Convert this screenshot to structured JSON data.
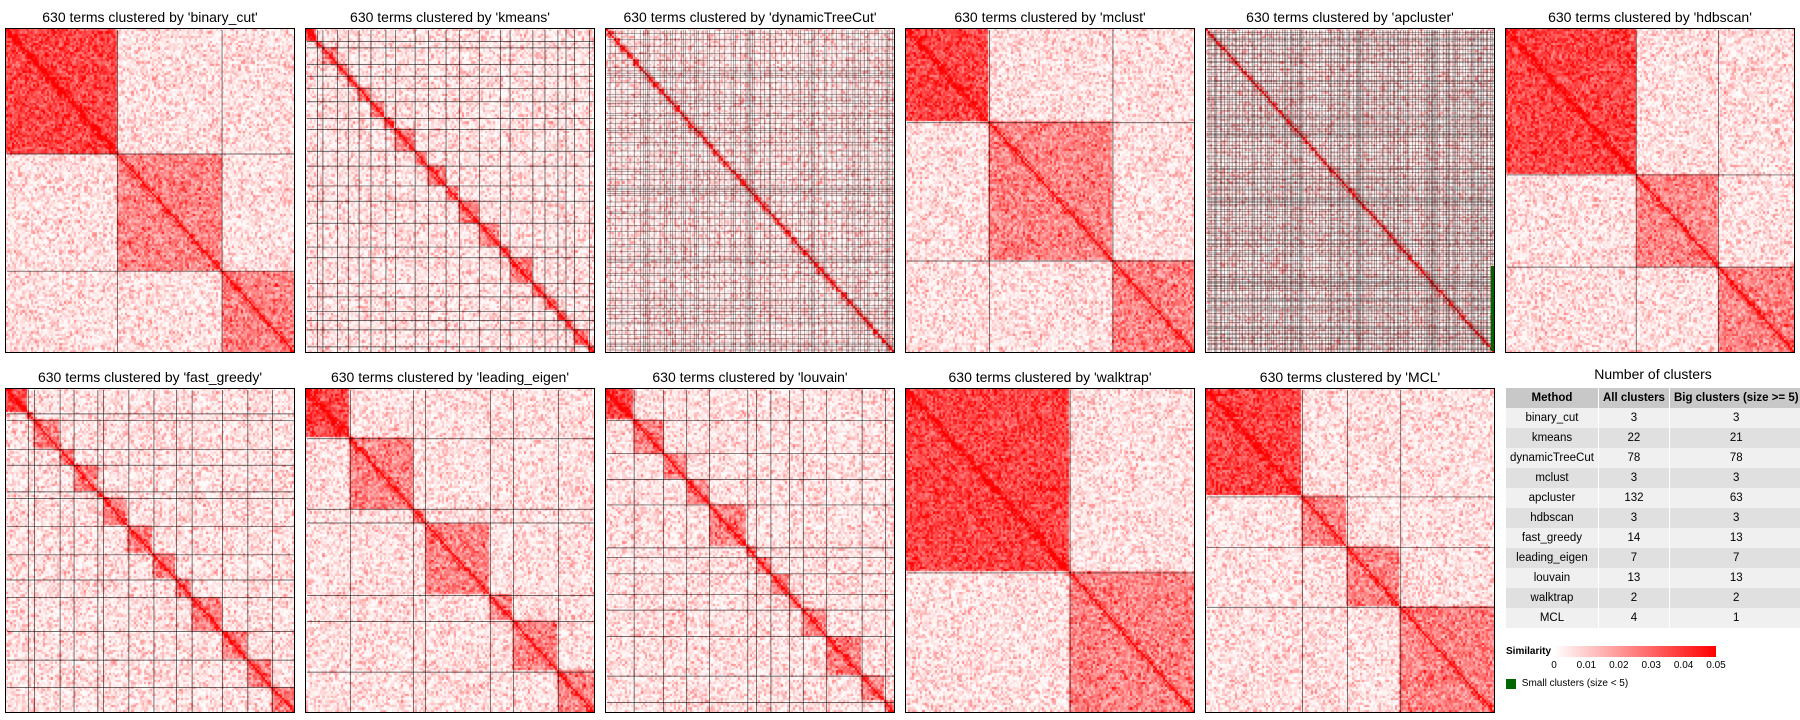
{
  "colors": {
    "low": "#ffffff",
    "high": "#ff0000",
    "boundary": "#000000",
    "small_cluster": "#006400"
  },
  "panels": [
    {
      "title": "630 terms clustered by 'binary_cut'",
      "method": "binary_cut",
      "clusters": 3
    },
    {
      "title": "630 terms clustered by 'kmeans'",
      "method": "kmeans",
      "clusters": 22
    },
    {
      "title": "630 terms clustered by 'dynamicTreeCut'",
      "method": "dynamicTreeCut",
      "clusters": 78
    },
    {
      "title": "630 terms clustered by 'mclust'",
      "method": "mclust",
      "clusters": 3
    },
    {
      "title": "630 terms clustered by 'apcluster'",
      "method": "apcluster",
      "clusters": 132
    },
    {
      "title": "630 terms clustered by 'hdbscan'",
      "method": "hdbscan",
      "clusters": 3
    },
    {
      "title": "630 terms clustered by 'fast_greedy'",
      "method": "fast_greedy",
      "clusters": 14
    },
    {
      "title": "630 terms clustered by 'leading_eigen'",
      "method": "leading_eigen",
      "clusters": 7
    },
    {
      "title": "630 terms clustered by 'louvain'",
      "method": "louvain",
      "clusters": 13
    },
    {
      "title": "630 terms clustered by 'walktrap'",
      "method": "walktrap",
      "clusters": 2
    },
    {
      "title": "630 terms clustered by 'MCL'",
      "method": "MCL",
      "clusters": 4
    }
  ],
  "summary": {
    "title": "Number of clusters",
    "headers": [
      "Method",
      "All clusters",
      "Big clusters (size >= 5)"
    ],
    "rows": [
      [
        "binary_cut",
        "3",
        "3"
      ],
      [
        "kmeans",
        "22",
        "21"
      ],
      [
        "dynamicTreeCut",
        "78",
        "78"
      ],
      [
        "mclust",
        "3",
        "3"
      ],
      [
        "apcluster",
        "132",
        "63"
      ],
      [
        "hdbscan",
        "3",
        "3"
      ],
      [
        "fast_greedy",
        "14",
        "13"
      ],
      [
        "leading_eigen",
        "7",
        "7"
      ],
      [
        "louvain",
        "13",
        "13"
      ],
      [
        "walktrap",
        "2",
        "2"
      ],
      [
        "MCL",
        "4",
        "1"
      ]
    ]
  },
  "legend": {
    "title": "Similarity",
    "ticks": [
      "0",
      "0.01",
      "0.02",
      "0.03",
      "0.04",
      "0.05"
    ],
    "small_label": "Small clusters (size < 5)"
  },
  "chart_data": [
    {
      "type": "heatmap",
      "title": "630 terms clustered by 'binary_cut'",
      "n_terms": 630,
      "n_clusters": 3,
      "color_range": [
        0,
        0.05
      ]
    },
    {
      "type": "heatmap",
      "title": "630 terms clustered by 'kmeans'",
      "n_terms": 630,
      "n_clusters": 22,
      "color_range": [
        0,
        0.05
      ]
    },
    {
      "type": "heatmap",
      "title": "630 terms clustered by 'dynamicTreeCut'",
      "n_terms": 630,
      "n_clusters": 78,
      "color_range": [
        0,
        0.05
      ]
    },
    {
      "type": "heatmap",
      "title": "630 terms clustered by 'mclust'",
      "n_terms": 630,
      "n_clusters": 3,
      "color_range": [
        0,
        0.05
      ]
    },
    {
      "type": "heatmap",
      "title": "630 terms clustered by 'apcluster'",
      "n_terms": 630,
      "n_clusters": 132,
      "color_range": [
        0,
        0.05
      ]
    },
    {
      "type": "heatmap",
      "title": "630 terms clustered by 'hdbscan'",
      "n_terms": 630,
      "n_clusters": 3,
      "color_range": [
        0,
        0.05
      ]
    },
    {
      "type": "heatmap",
      "title": "630 terms clustered by 'fast_greedy'",
      "n_terms": 630,
      "n_clusters": 14,
      "color_range": [
        0,
        0.05
      ]
    },
    {
      "type": "heatmap",
      "title": "630 terms clustered by 'leading_eigen'",
      "n_terms": 630,
      "n_clusters": 7,
      "color_range": [
        0,
        0.05
      ]
    },
    {
      "type": "heatmap",
      "title": "630 terms clustered by 'louvain'",
      "n_terms": 630,
      "n_clusters": 13,
      "color_range": [
        0,
        0.05
      ]
    },
    {
      "type": "heatmap",
      "title": "630 terms clustered by 'walktrap'",
      "n_terms": 630,
      "n_clusters": 2,
      "color_range": [
        0,
        0.05
      ]
    },
    {
      "type": "heatmap",
      "title": "630 terms clustered by 'MCL'",
      "n_terms": 630,
      "n_clusters": 4,
      "color_range": [
        0,
        0.05
      ]
    },
    {
      "type": "table",
      "title": "Number of clusters",
      "columns": [
        "Method",
        "All clusters",
        "Big clusters (size >= 5)"
      ],
      "rows": [
        [
          "binary_cut",
          3,
          3
        ],
        [
          "kmeans",
          22,
          21
        ],
        [
          "dynamicTreeCut",
          78,
          78
        ],
        [
          "mclust",
          3,
          3
        ],
        [
          "apcluster",
          132,
          63
        ],
        [
          "hdbscan",
          3,
          3
        ],
        [
          "fast_greedy",
          14,
          13
        ],
        [
          "leading_eigen",
          7,
          7
        ],
        [
          "louvain",
          13,
          13
        ],
        [
          "walktrap",
          2,
          2
        ],
        [
          "MCL",
          4,
          1
        ]
      ]
    }
  ]
}
